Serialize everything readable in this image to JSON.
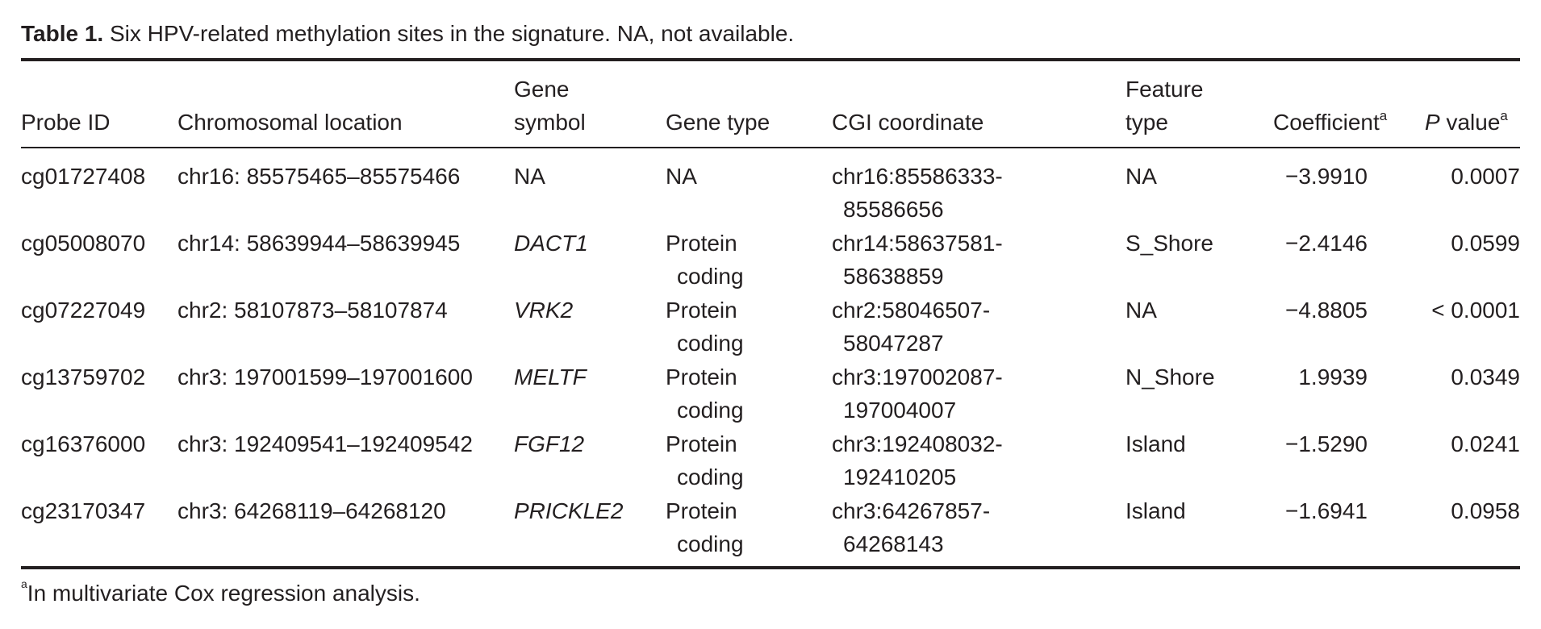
{
  "caption": {
    "label": "Table 1.",
    "text": " Six HPV-related methylation sites in the signature. NA, not available."
  },
  "headers": {
    "probe_id": "Probe ID",
    "chrom_location": "Chromosomal location",
    "gene_symbol_1": "Gene",
    "gene_symbol_2": "symbol",
    "gene_type": "Gene type",
    "cgi": "CGI coordinate",
    "feature_1": "Feature",
    "feature_2": "type",
    "coefficient": "Coefficient",
    "coefficient_sup": "a",
    "pvalue_p": "P",
    "pvalue_rest": " value",
    "pvalue_sup": "a"
  },
  "rows": [
    {
      "probe": "cg01727408",
      "loc": "chr16: 85575465–85575466",
      "gene": "NA",
      "type1": "NA",
      "type2": "",
      "cgi1": "chr16:85586333-",
      "cgi2": "85586656",
      "feature": "NA",
      "coef": "−3.9910",
      "p": "0.0007"
    },
    {
      "probe": "cg05008070",
      "loc": "chr14: 58639944–58639945",
      "gene": "DACT1",
      "type1": "Protein",
      "type2": "coding",
      "cgi1": "chr14:58637581-",
      "cgi2": "58638859",
      "feature": "S_Shore",
      "coef": "−2.4146",
      "p": "0.0599"
    },
    {
      "probe": "cg07227049",
      "loc": "chr2: 58107873–58107874",
      "gene": "VRK2",
      "type1": "Protein",
      "type2": "coding",
      "cgi1": "chr2:58046507-",
      "cgi2": "58047287",
      "feature": "NA",
      "coef": "−4.8805",
      "p": "< 0.0001"
    },
    {
      "probe": "cg13759702",
      "loc": "chr3: 197001599–197001600",
      "gene": "MELTF",
      "type1": "Protein",
      "type2": "coding",
      "cgi1": "chr3:197002087-",
      "cgi2": "197004007",
      "feature": "N_Shore",
      "coef": "1.9939",
      "p": "0.0349"
    },
    {
      "probe": "cg16376000",
      "loc": "chr3: 192409541–192409542",
      "gene": "FGF12",
      "type1": "Protein",
      "type2": "coding",
      "cgi1": "chr3:192408032-",
      "cgi2": "192410205",
      "feature": "Island",
      "coef": "−1.5290",
      "p": "0.0241"
    },
    {
      "probe": "cg23170347",
      "loc": "chr3: 64268119–64268120",
      "gene": "PRICKLE2",
      "type1": "Protein",
      "type2": "coding",
      "cgi1": "chr3:64267857-",
      "cgi2": "64268143",
      "feature": "Island",
      "coef": "−1.6941",
      "p": "0.0958"
    }
  ],
  "footnote": {
    "sup": "a",
    "text": "In multivariate Cox regression analysis."
  }
}
